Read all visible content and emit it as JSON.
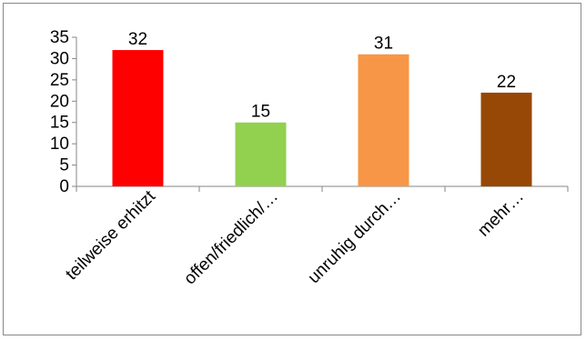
{
  "chart_data": {
    "type": "bar",
    "categories": [
      "teilweise erhitzt",
      "offen/friedlich/…",
      "unruhig durch…",
      "mehr…"
    ],
    "values": [
      32,
      15,
      31,
      22
    ],
    "colors": [
      "#ff0000",
      "#92d050",
      "#f79646",
      "#974706"
    ],
    "ylim": [
      0,
      35
    ],
    "yticks": [
      0,
      5,
      10,
      15,
      20,
      25,
      30,
      35
    ],
    "data_labels": [
      "32",
      "15",
      "31",
      "22"
    ],
    "title": "",
    "xlabel": "",
    "ylabel": "",
    "grid": false,
    "legend": "none"
  }
}
